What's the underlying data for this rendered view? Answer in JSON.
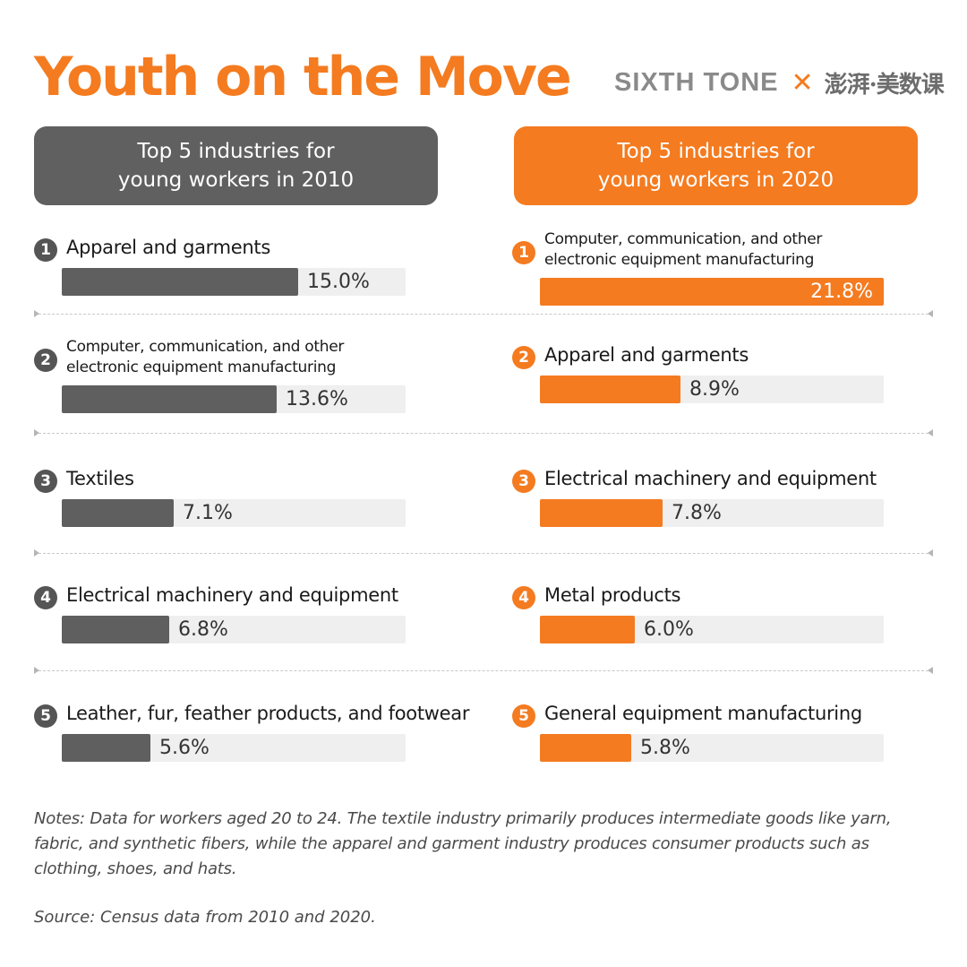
{
  "title": "Youth on the Move",
  "brand": {
    "sixth_tone": "SIXTH TONE",
    "separator": "✕",
    "partner": "澎湃·美数课"
  },
  "colors": {
    "accent": "#f47b20",
    "dark": "#5f5f5f",
    "track": "#efefef"
  },
  "chart_data": [
    {
      "type": "bar",
      "title": "Top 5 industries for young workers in 2010",
      "title_lines": [
        "Top 5 industries for",
        "young workers in 2010"
      ],
      "unit": "%",
      "xlim": [
        0,
        21.8
      ],
      "categories": [
        "Apparel and garments",
        "Computer, communication, and other electronic equipment manufacturing",
        "Textiles",
        "Electrical machinery and equipment",
        "Leather, fur, feather products, and footwear"
      ],
      "category_lines": [
        [
          "Apparel and garments"
        ],
        [
          "Computer, communication, and other",
          "electronic equipment manufacturing"
        ],
        [
          "Textiles"
        ],
        [
          "Electrical machinery and equipment"
        ],
        [
          "Leather, fur, feather products, and footwear"
        ]
      ],
      "values": [
        15.0,
        13.6,
        7.1,
        6.8,
        5.6
      ],
      "value_labels": [
        "15.0%",
        "13.6%",
        "7.1%",
        "6.8%",
        "5.6%"
      ],
      "ranks": [
        "1",
        "2",
        "3",
        "4",
        "5"
      ]
    },
    {
      "type": "bar",
      "title": "Top 5 industries for young workers in 2020",
      "title_lines": [
        "Top 5 industries for",
        "young workers in 2020"
      ],
      "unit": "%",
      "xlim": [
        0,
        21.8
      ],
      "categories": [
        "Computer, communication, and other electronic equipment manufacturing",
        "Apparel and garments",
        "Electrical machinery and equipment",
        "Metal products",
        "General equipment manufacturing"
      ],
      "category_lines": [
        [
          "Computer, communication, and other",
          "electronic equipment manufacturing"
        ],
        [
          "Apparel and garments"
        ],
        [
          "Electrical machinery and equipment"
        ],
        [
          "Metal products"
        ],
        [
          "General equipment manufacturing"
        ]
      ],
      "values": [
        21.8,
        8.9,
        7.8,
        6.0,
        5.8
      ],
      "value_labels": [
        "21.8%",
        "8.9%",
        "7.8%",
        "6.0%",
        "5.8%"
      ],
      "ranks": [
        "1",
        "2",
        "3",
        "4",
        "5"
      ]
    }
  ],
  "notes": "Notes: Data for workers aged 20 to 24. The textile industry primarily produces intermediate goods like yarn, fabric, and synthetic fibers, while the apparel and garment industry produces consumer products such as clothing, shoes, and hats.",
  "source": "Source: Census data from 2010 and 2020."
}
